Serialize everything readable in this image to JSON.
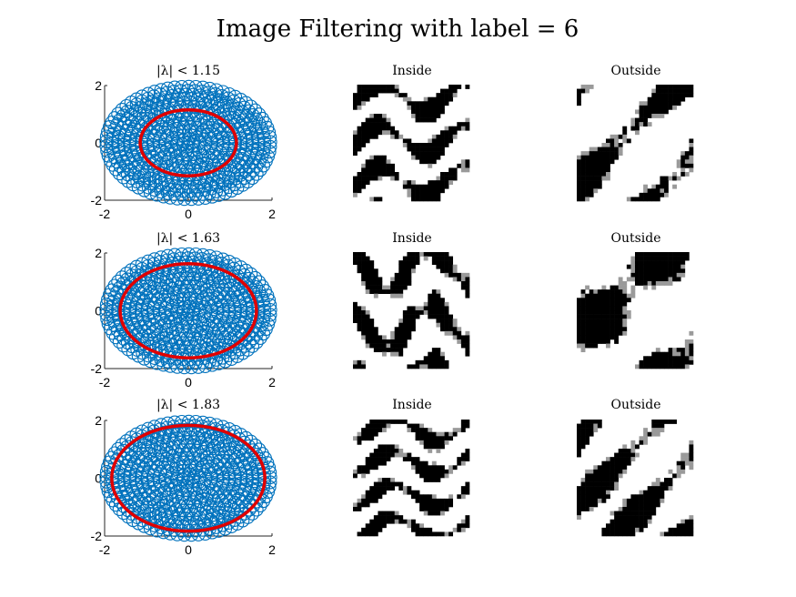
{
  "figure": {
    "title": "Image Filtering with label = 6"
  },
  "chart_data": [
    {
      "type": "scatter",
      "title": "|λ| < 1.15",
      "xlim": [
        -2,
        2
      ],
      "ylim": [
        -2,
        2
      ],
      "xticks": [
        "-2",
        "0",
        "2"
      ],
      "yticks": [
        "-2",
        "0",
        "2"
      ],
      "marker_color": "#0072BD",
      "circle_color": "#E00000",
      "circle_radius": 1.15,
      "points_description": "ring lattice, radii 0.05–1.97"
    },
    {
      "type": "scatter",
      "title": "|λ| < 1.63",
      "xlim": [
        -2,
        2
      ],
      "ylim": [
        -2,
        2
      ],
      "xticks": [
        "-2",
        "0",
        "2"
      ],
      "yticks": [
        "-2",
        "0",
        "2"
      ],
      "marker_color": "#0072BD",
      "circle_color": "#E00000",
      "circle_radius": 1.63
    },
    {
      "type": "scatter",
      "title": "|λ| < 1.83",
      "xlim": [
        -2,
        2
      ],
      "ylim": [
        -2,
        2
      ],
      "xticks": [
        "-2",
        "0",
        "2"
      ],
      "yticks": [
        "-2",
        "0",
        "2"
      ],
      "marker_color": "#0072BD",
      "circle_color": "#E00000",
      "circle_radius": 1.83
    }
  ],
  "images": [
    {
      "row": 0,
      "inside_title": "Inside",
      "outside_title": "Outside"
    },
    {
      "row": 1,
      "inside_title": "Inside",
      "outside_title": "Outside"
    },
    {
      "row": 2,
      "inside_title": "Inside",
      "outside_title": "Outside"
    }
  ]
}
